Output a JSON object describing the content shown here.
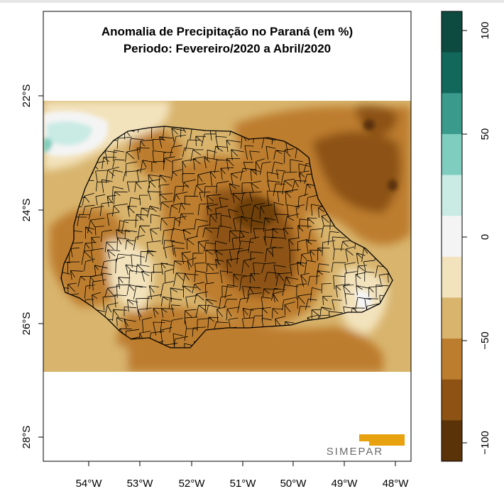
{
  "map": {
    "title_line1": "Anomalia de Precipitação no Paraná (em %)",
    "title_line2": "Periodo: Fevereiro/2020 a Abril/2020",
    "lat_labels": [
      "22°S",
      "24°S",
      "26°S",
      "28°S"
    ],
    "lon_labels": [
      "54°W",
      "53°W",
      "52°W",
      "51°W",
      "50°W",
      "49°W",
      "48°W"
    ],
    "logo_text": "SIMEPAR"
  },
  "colorbar": {
    "tick_labels": [
      "100",
      "50",
      "0",
      "−50",
      "−100"
    ],
    "colors": [
      "#0d4a3f",
      "#13685c",
      "#3a9a8c",
      "#7fcdbe",
      "#c9ebe4",
      "#f4f4f4",
      "#f3e3bd",
      "#d8b46d",
      "#bd7d2e",
      "#8d5214",
      "#5a3308"
    ]
  },
  "palette": {
    "dry_dark": "#8d5214",
    "dry_mid": "#bd7d2e",
    "dry_light": "#d8b46d",
    "dry_pale": "#f3e3bd",
    "wet_light": "#c9ebe4",
    "wet_mid": "#7fcdbe"
  }
}
